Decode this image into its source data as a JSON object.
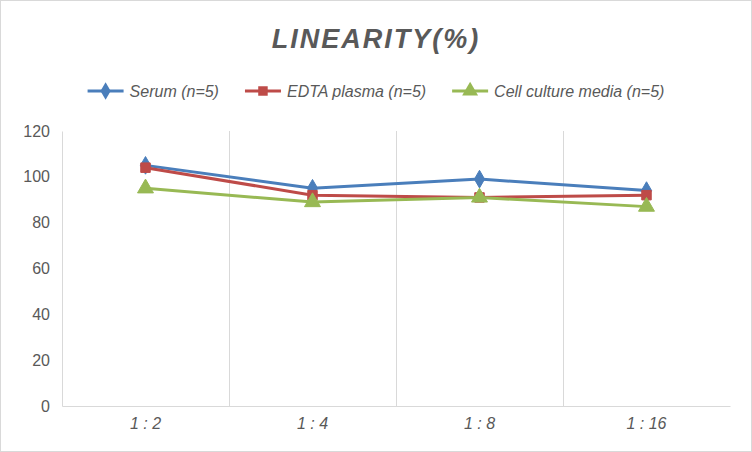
{
  "chart_data": {
    "type": "line",
    "title": "LINEARITY(%)",
    "categories": [
      "1 : 2",
      "1 : 4",
      "1 : 8",
      "1 : 16"
    ],
    "series": [
      {
        "name": "Serum (n=5)",
        "color": "#4a7ebb",
        "marker": "diamond",
        "values": [
          105,
          95,
          99,
          94
        ]
      },
      {
        "name": "EDTA plasma (n=5)",
        "color": "#be4b48",
        "marker": "square",
        "values": [
          104,
          92,
          91,
          92
        ]
      },
      {
        "name": "Cell culture media (n=5)",
        "color": "#98b954",
        "marker": "triangle",
        "values": [
          95,
          89,
          91,
          87
        ]
      }
    ],
    "ylim": [
      0,
      120
    ],
    "yticks": [
      0,
      20,
      40,
      60,
      80,
      100,
      120
    ],
    "grid": true,
    "legend": "top"
  }
}
